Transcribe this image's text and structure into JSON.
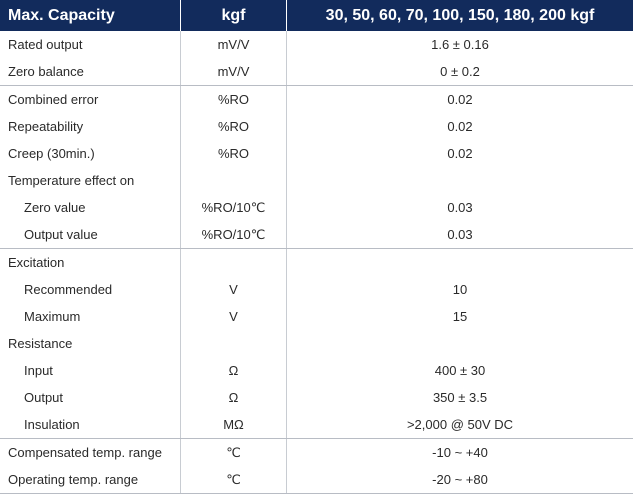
{
  "header": {
    "col1": "Max. Capacity",
    "col2": "kgf",
    "col3": "30, 50, 60, 70, 100, 150, 180, 200 kgf"
  },
  "groups": [
    [
      {
        "label": "Rated output",
        "unit": "mV/V",
        "value": "1.6 ± 0.16",
        "sub": false
      },
      {
        "label": "Zero balance",
        "unit": "mV/V",
        "value": "0 ± 0.2",
        "sub": false
      }
    ],
    [
      {
        "label": "Combined error",
        "unit": "%RO",
        "value": "0.02",
        "sub": false
      },
      {
        "label": "Repeatability",
        "unit": "%RO",
        "value": "0.02",
        "sub": false
      },
      {
        "label": "Creep (30min.)",
        "unit": "%RO",
        "value": "0.02",
        "sub": false
      },
      {
        "label": "Temperature effect on",
        "unit": "",
        "value": "",
        "sub": false
      },
      {
        "label": "Zero value",
        "unit": "%RO/10℃",
        "value": "0.03",
        "sub": true
      },
      {
        "label": "Output  value",
        "unit": "%RO/10℃",
        "value": "0.03",
        "sub": true
      }
    ],
    [
      {
        "label": "Excitation",
        "unit": "",
        "value": "",
        "sub": false
      },
      {
        "label": "Recommended",
        "unit": "V",
        "value": "10",
        "sub": true
      },
      {
        "label": "Maximum",
        "unit": "V",
        "value": "15",
        "sub": true
      },
      {
        "label": "Resistance",
        "unit": "",
        "value": "",
        "sub": false
      },
      {
        "label": "Input",
        "unit": "Ω",
        "value": "400 ± 30",
        "sub": true
      },
      {
        "label": "Output",
        "unit": "Ω",
        "value": "350 ± 3.5",
        "sub": true
      },
      {
        "label": "Insulation",
        "unit": "MΩ",
        "value": ">2,000 @ 50V DC",
        "sub": true
      }
    ],
    [
      {
        "label": "Compensated temp. range",
        "unit": "℃",
        "value": "-10 ~ +40",
        "sub": false
      },
      {
        "label": "Operating temp. range",
        "unit": "℃",
        "value": "-20 ~ +80",
        "sub": false
      }
    ]
  ]
}
